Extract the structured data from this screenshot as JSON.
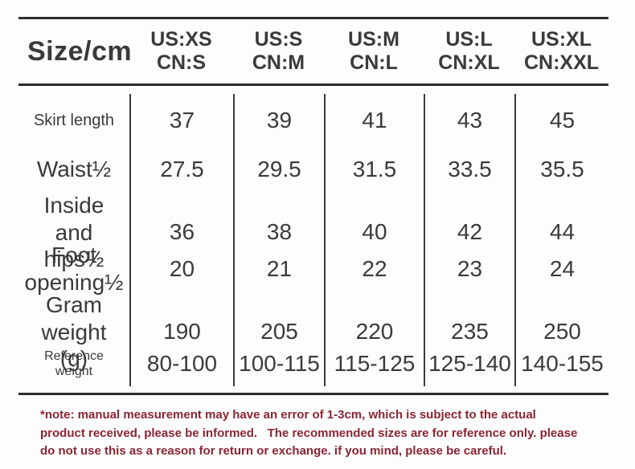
{
  "table": {
    "corner_label": "Size/cm",
    "columns": [
      {
        "us": "US:XS",
        "cn": "CN:S"
      },
      {
        "us": "US:S",
        "cn": "CN:M"
      },
      {
        "us": "US:M",
        "cn": "CN:L"
      },
      {
        "us": "US:L",
        "cn": "CN:XL"
      },
      {
        "us": "US:XL",
        "cn": "CN:XXL"
      }
    ],
    "rows": [
      {
        "label": "Skirt length",
        "values": [
          "37",
          "39",
          "41",
          "43",
          "45"
        ]
      },
      {
        "label": "Waist½",
        "values": [
          "27.5",
          "29.5",
          "31.5",
          "33.5",
          "35.5"
        ]
      },
      {
        "label": "Inside and hips½",
        "values": [
          "36",
          "38",
          "40",
          "42",
          "44"
        ]
      },
      {
        "label": "Foot opening½",
        "values": [
          "20",
          "21",
          "22",
          "23",
          "24"
        ]
      },
      {
        "label": "Gram weight (g)",
        "values": [
          "190",
          "205",
          "220",
          "235",
          "250"
        ]
      },
      {
        "label": "Reference weight",
        "values": [
          "80-100",
          "100-115",
          "115-125",
          "125-140",
          "140-155"
        ]
      }
    ]
  },
  "note": {
    "lines": [
      "*note: manual measurement may have an error of 1-3cm, which is subject to the actual",
      "product received, please be informed.   The recommended sizes are for reference only. please",
      "do not use this as a reason for return or exchange. if you mind, please be careful."
    ]
  },
  "colors": {
    "text": "#3a3a3a",
    "rule": "#2d2d2d",
    "note_text": "#8b2533",
    "background": "#fdfdfd"
  }
}
